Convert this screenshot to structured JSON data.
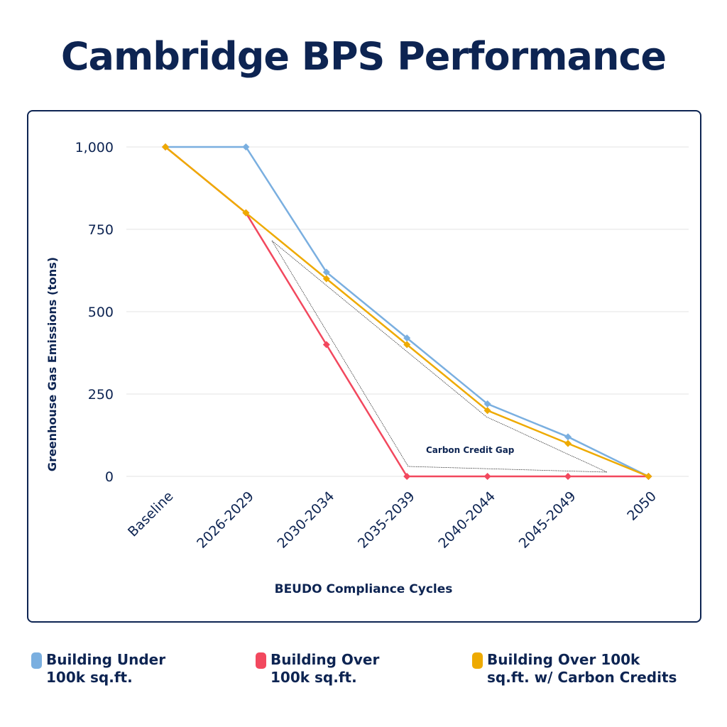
{
  "title": "Cambridge BPS Performance",
  "chart_data": {
    "type": "line",
    "categories": [
      "Baseline",
      "2026-2029",
      "2030-2034",
      "2035-2039",
      "2040-2044",
      "2045-2049",
      "2050"
    ],
    "series": [
      {
        "name": "Building Under 100k sq.ft.",
        "line1": "Building Under",
        "line2": "100k sq.ft.",
        "color": "#7aafe0",
        "values": [
          1000,
          1000,
          620,
          420,
          220,
          120,
          0
        ]
      },
      {
        "name": "Building Over 100k sq.ft.",
        "line1": "Building Over",
        "line2": "100k sq.ft.",
        "color": "#f2485e",
        "values": [
          1000,
          800,
          400,
          0,
          0,
          0,
          0
        ]
      },
      {
        "name": "Building Over 100k sq.ft. w/ Carbon Credits",
        "line1": "Building Over 100k",
        "line2": "sq.ft. w/ Carbon Credits",
        "color": "#eeaa00",
        "values": [
          1000,
          800,
          600,
          400,
          200,
          100,
          0
        ]
      }
    ],
    "yticks": [
      0,
      250,
      500,
      750,
      1000
    ],
    "ytick_labels": [
      "0",
      "250",
      "500",
      "750",
      "1,000"
    ],
    "ylim": [
      0,
      1000
    ],
    "xlabel": "BEUDO Compliance Cycles",
    "ylabel": "Greenhouse Gas Emissions (tons)",
    "annotation": "Carbon Credit Gap",
    "grid": true,
    "legend": "bottom"
  }
}
